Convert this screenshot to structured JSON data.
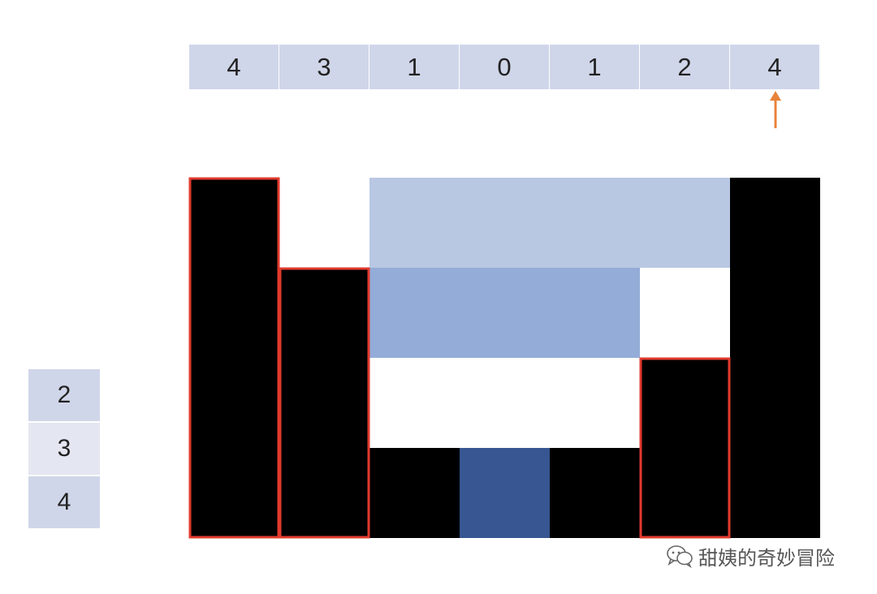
{
  "heights": [
    "4",
    "3",
    "1",
    "0",
    "1",
    "2",
    "4"
  ],
  "pointer_index": 6,
  "stack": [
    "2",
    "3",
    "4"
  ],
  "highlighted_bars": [
    0,
    1,
    5
  ],
  "water_layers": [
    {
      "level_from": 3,
      "level_to": 4,
      "col_from": 2,
      "col_to": 5,
      "color": "#b8c7e2"
    },
    {
      "level_from": 2,
      "level_to": 3,
      "col_from": 2,
      "col_to": 4,
      "color": "#94acd8"
    },
    {
      "level_from": 0,
      "level_to": 1,
      "col_from": 3,
      "col_to": 3,
      "color": "#375692"
    }
  ],
  "colors": {
    "cell_bg": "#d0d6e9",
    "stack_light": "#e4e7f1",
    "bar": "#000000",
    "highlight": "#e23a2e",
    "pointer": "#e8833a"
  },
  "watermark": {
    "icon": "wechat-icon",
    "text": "甜姨的奇妙冒险"
  }
}
